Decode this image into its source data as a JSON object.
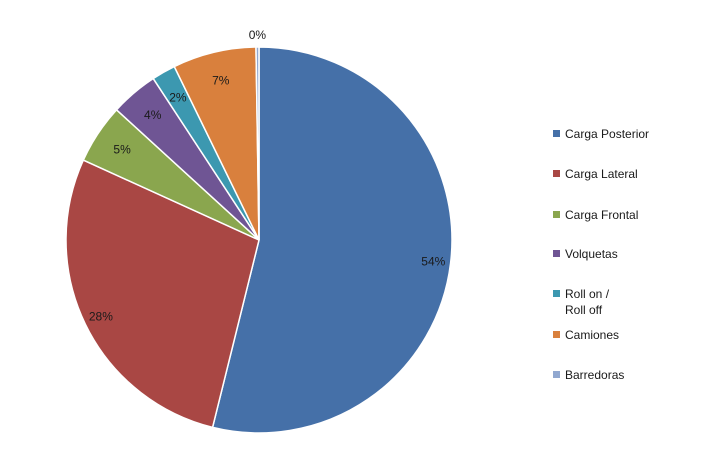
{
  "chart_data": {
    "type": "pie",
    "title": "",
    "start_angle_deg": 0,
    "direction": "clockwise",
    "slices": [
      {
        "name": "Carga Posterior",
        "value": 54,
        "label": "54%",
        "color": "#4570a8"
      },
      {
        "name": "Carga Lateral",
        "value": 28,
        "label": "28%",
        "color": "#a94744"
      },
      {
        "name": "Carga Frontal",
        "value": 5,
        "label": "5%",
        "color": "#8aa64e"
      },
      {
        "name": "Volquetas",
        "value": 4,
        "label": "4%",
        "color": "#6f5594"
      },
      {
        "name": "Roll on /\nRoll off",
        "value": 2,
        "label": "2%",
        "color": "#3c98b0"
      },
      {
        "name": "Camiones",
        "value": 7,
        "label": "7%",
        "color": "#d9803d"
      },
      {
        "name": "Barredoras",
        "value": 0.25,
        "label": "0%",
        "color": "#91a8d0"
      }
    ],
    "legend_position": "right"
  }
}
